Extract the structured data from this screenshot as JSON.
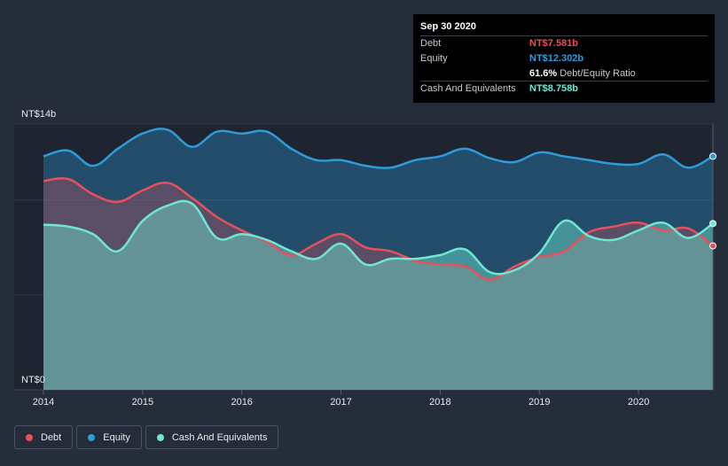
{
  "colors": {
    "debt": "#e8505b",
    "equity": "#2d9cdb",
    "cash": "#6ee7d2",
    "background": "#262d3a",
    "plot_background": "#1e2430"
  },
  "tooltip": {
    "date": "Sep 30 2020",
    "rows": [
      {
        "label": "Debt",
        "value": "NT$7.581b",
        "extra": ""
      },
      {
        "label": "Equity",
        "value": "NT$12.302b",
        "extra": ""
      },
      {
        "label": "",
        "value": "61.6%",
        "extra": "Debt/Equity Ratio"
      },
      {
        "label": "Cash And Equivalents",
        "value": "NT$8.758b",
        "extra": ""
      }
    ]
  },
  "legend": [
    {
      "label": "Debt",
      "key": "debt"
    },
    {
      "label": "Equity",
      "key": "equity"
    },
    {
      "label": "Cash And Equivalents",
      "key": "cash"
    }
  ],
  "chart_data": {
    "type": "area",
    "title": "",
    "xlabel": "",
    "ylabel": "",
    "y_top_label": "NT$14b",
    "y_bottom_label": "NT$0",
    "ylim": [
      0,
      14
    ],
    "xlim": [
      2014.0,
      2020.75
    ],
    "x_ticks": [
      "2014",
      "2015",
      "2016",
      "2017",
      "2018",
      "2019",
      "2020"
    ],
    "grid": true,
    "legend_position": "bottom-left",
    "series": [
      {
        "name": "Equity",
        "key": "equity",
        "x": [
          2014.0,
          2014.25,
          2014.5,
          2014.75,
          2015.0,
          2015.25,
          2015.5,
          2015.75,
          2016.0,
          2016.25,
          2016.5,
          2016.75,
          2017.0,
          2017.25,
          2017.5,
          2017.75,
          2018.0,
          2018.25,
          2018.5,
          2018.75,
          2019.0,
          2019.25,
          2019.5,
          2019.75,
          2020.0,
          2020.25,
          2020.5,
          2020.75
        ],
        "values": [
          12.3,
          12.6,
          11.8,
          12.7,
          13.5,
          13.7,
          12.8,
          13.6,
          13.5,
          13.6,
          12.7,
          12.1,
          12.1,
          11.8,
          11.7,
          12.1,
          12.3,
          12.7,
          12.2,
          12.0,
          12.5,
          12.3,
          12.1,
          11.9,
          11.9,
          12.4,
          11.7,
          12.302
        ]
      },
      {
        "name": "Debt",
        "key": "debt",
        "x": [
          2014.0,
          2014.25,
          2014.5,
          2014.75,
          2015.0,
          2015.25,
          2015.5,
          2015.75,
          2016.0,
          2016.25,
          2016.5,
          2016.75,
          2017.0,
          2017.25,
          2017.5,
          2017.75,
          2018.0,
          2018.25,
          2018.5,
          2018.75,
          2019.0,
          2019.25,
          2019.5,
          2019.75,
          2020.0,
          2020.25,
          2020.5,
          2020.75
        ],
        "values": [
          11.0,
          11.1,
          10.3,
          9.9,
          10.5,
          10.9,
          10.1,
          9.1,
          8.4,
          7.8,
          7.1,
          7.7,
          8.2,
          7.5,
          7.3,
          6.8,
          6.6,
          6.5,
          5.8,
          6.5,
          7.0,
          7.3,
          8.3,
          8.6,
          8.8,
          8.4,
          8.5,
          7.581
        ]
      },
      {
        "name": "Cash And Equivalents",
        "key": "cash",
        "x": [
          2014.0,
          2014.25,
          2014.5,
          2014.75,
          2015.0,
          2015.25,
          2015.5,
          2015.75,
          2016.0,
          2016.25,
          2016.5,
          2016.75,
          2017.0,
          2017.25,
          2017.5,
          2017.75,
          2018.0,
          2018.25,
          2018.5,
          2018.75,
          2019.0,
          2019.25,
          2019.5,
          2019.75,
          2020.0,
          2020.25,
          2020.5,
          2020.75
        ],
        "values": [
          8.7,
          8.6,
          8.2,
          7.3,
          8.9,
          9.7,
          9.8,
          8.0,
          8.2,
          7.9,
          7.3,
          6.9,
          7.7,
          6.6,
          6.9,
          6.9,
          7.1,
          7.4,
          6.2,
          6.3,
          7.2,
          8.9,
          8.1,
          7.9,
          8.4,
          8.8,
          8.0,
          8.758
        ]
      }
    ]
  }
}
